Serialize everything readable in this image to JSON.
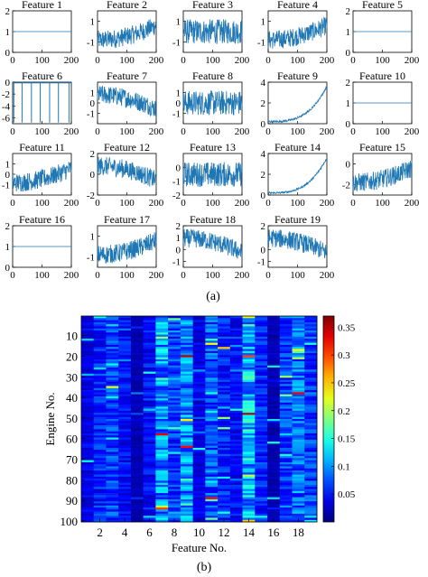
{
  "figure": {
    "caption_a": "(a)",
    "caption_b": "(b)"
  },
  "colors": {
    "line": "#1f77b4",
    "axis": "#000000"
  },
  "chart_data": [
    {
      "type": "line",
      "panel": "a",
      "x_ticks": [
        "0",
        "100",
        "200"
      ],
      "xlim": [
        0,
        200
      ],
      "subplots": [
        {
          "title": "Feature 1",
          "y_ticks": [
            "0",
            "1",
            "2"
          ],
          "ylim": [
            0,
            2
          ],
          "shape": "flat",
          "level": 1
        },
        {
          "title": "Feature 2",
          "y_ticks": [
            "1",
            "-1"
          ],
          "ylim": [
            -2,
            2
          ],
          "shape": "noisy_up"
        },
        {
          "title": "Feature 3",
          "y_ticks": [
            "1",
            "-1"
          ],
          "ylim": [
            -2,
            2
          ],
          "shape": "noisy_flat"
        },
        {
          "title": "Feature 4",
          "y_ticks": [
            "1",
            "-1"
          ],
          "ylim": [
            -2,
            2
          ],
          "shape": "noisy_up"
        },
        {
          "title": "Feature 5",
          "y_ticks": [
            "0",
            "1",
            "2"
          ],
          "ylim": [
            0,
            2
          ],
          "shape": "flat",
          "level": 1
        },
        {
          "title": "Feature 6",
          "y_ticks": [
            "0",
            "-2",
            "-4",
            "-6"
          ],
          "ylim": [
            -7,
            0
          ],
          "shape": "spikes"
        },
        {
          "title": "Feature 7",
          "y_ticks": [
            "1",
            "0",
            "-1"
          ],
          "ylim": [
            -2,
            2
          ],
          "shape": "noisy_down"
        },
        {
          "title": "Feature 8",
          "y_ticks": [
            "1",
            "0",
            "-1"
          ],
          "ylim": [
            -2,
            2
          ],
          "shape": "noisy_flat"
        },
        {
          "title": "Feature 9",
          "y_ticks": [
            "4",
            "2",
            "0"
          ],
          "ylim": [
            0,
            4
          ],
          "shape": "exp_up"
        },
        {
          "title": "Feature 10",
          "y_ticks": [
            "0",
            "1",
            "2"
          ],
          "ylim": [
            0,
            2
          ],
          "shape": "flat",
          "level": 1
        },
        {
          "title": "Feature 11",
          "y_ticks": [
            "1",
            "0",
            "-1"
          ],
          "ylim": [
            -2,
            2
          ],
          "shape": "noisy_up"
        },
        {
          "title": "Feature 12",
          "y_ticks": [
            "2",
            "0",
            "-2"
          ],
          "ylim": [
            -2,
            2
          ],
          "shape": "noisy_down"
        },
        {
          "title": "Feature 13",
          "y_ticks": [
            "0",
            "-1",
            "-2"
          ],
          "ylim": [
            -2,
            1
          ],
          "shape": "noisy_flat"
        },
        {
          "title": "Feature 14",
          "y_ticks": [
            "4",
            "2",
            "0"
          ],
          "ylim": [
            0,
            4
          ],
          "shape": "exp_up"
        },
        {
          "title": "Feature 15",
          "y_ticks": [
            "0",
            "-2"
          ],
          "ylim": [
            -3,
            1
          ],
          "shape": "noisy_up"
        },
        {
          "title": "Feature 16",
          "y_ticks": [
            "0",
            "1",
            "2"
          ],
          "ylim": [
            0,
            2
          ],
          "shape": "flat",
          "level": 1
        },
        {
          "title": "Feature 17",
          "y_ticks": [
            "1",
            "-1"
          ],
          "ylim": [
            -2,
            2
          ],
          "shape": "noisy_up"
        },
        {
          "title": "Feature 18",
          "y_ticks": [
            "2",
            "1",
            "0",
            "-1"
          ],
          "ylim": [
            -1.5,
            2
          ],
          "shape": "noisy_down"
        },
        {
          "title": "Feature 19",
          "y_ticks": [
            "2",
            "0",
            "-1"
          ],
          "ylim": [
            -1.5,
            2
          ],
          "shape": "noisy_down"
        }
      ]
    },
    {
      "type": "heatmap",
      "panel": "b",
      "xlabel": "Feature No.",
      "ylabel": "Engine No.",
      "x_ticks": [
        "2",
        "4",
        "6",
        "8",
        "10",
        "12",
        "14",
        "16",
        "18"
      ],
      "y_ticks": [
        "10",
        "20",
        "30",
        "40",
        "50",
        "60",
        "70",
        "80",
        "90",
        "100"
      ],
      "n_features": 19,
      "n_engines": 100,
      "colorbar_ticks": [
        "0.35",
        "0.3",
        "0.25",
        "0.2",
        "0.15",
        "0.1",
        "0.05"
      ],
      "clim": [
        0,
        0.37
      ],
      "colormap": "jet",
      "notable_cells": [
        {
          "feature": 9,
          "engine": 20,
          "value": 0.35
        },
        {
          "feature": 14,
          "engine": 48,
          "value": 0.35
        },
        {
          "feature": 18,
          "engine": 38,
          "value": 0.33
        },
        {
          "feature": 7,
          "engine": 58,
          "value": 0.33
        },
        {
          "feature": 11,
          "engine": 89,
          "value": 0.32
        },
        {
          "feature": 7,
          "engine": 94,
          "value": 0.3
        },
        {
          "feature": 14,
          "engine": 20,
          "value": 0.3
        },
        {
          "feature": 12,
          "engine": 16,
          "value": 0.25
        },
        {
          "feature": 9,
          "engine": 64,
          "value": 0.32
        },
        {
          "feature": 3,
          "engine": 35,
          "value": 0.22
        },
        {
          "feature": 14,
          "engine": 100,
          "value": 0.25
        }
      ]
    }
  ]
}
